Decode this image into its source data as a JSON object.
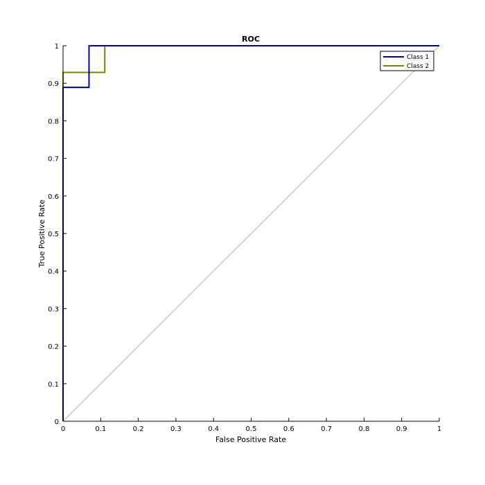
{
  "chart_data": {
    "type": "line",
    "title": "ROC",
    "xlabel": "False Positive Rate",
    "ylabel": "True Positive Rate",
    "xlim": [
      0,
      1
    ],
    "ylim": [
      0,
      1
    ],
    "grid": false,
    "legend_position": "top-right",
    "xticks": [
      "0",
      "0.1",
      "0.2",
      "0.3",
      "0.4",
      "0.5",
      "0.6",
      "0.7",
      "0.8",
      "0.9",
      "1"
    ],
    "yticks": [
      "0",
      "0.1",
      "0.2",
      "0.3",
      "0.4",
      "0.5",
      "0.6",
      "0.7",
      "0.8",
      "0.9",
      "1"
    ],
    "series": [
      {
        "name": "Class 1",
        "color": "#0000a8",
        "x": [
          0,
          0,
          0.069,
          0.069,
          1
        ],
        "y": [
          0,
          0.889,
          0.889,
          1,
          1
        ]
      },
      {
        "name": "Class 2",
        "color": "#808000",
        "x": [
          0,
          0,
          0.111,
          0.111,
          1
        ],
        "y": [
          0,
          0.929,
          0.929,
          1,
          1
        ]
      }
    ],
    "diagonal": {
      "x": [
        0,
        1
      ],
      "y": [
        0,
        1
      ],
      "color": "#c8c8c8"
    }
  }
}
